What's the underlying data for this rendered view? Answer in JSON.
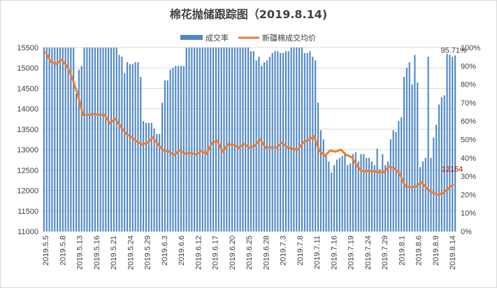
{
  "chart_data": {
    "type": "bar",
    "title": "棉花抛储跟踪图（2019.8.14)",
    "legend": [
      "成交率",
      "新疆棉成交均价"
    ],
    "legend_position": "top",
    "colors": {
      "bar": "#4e87c8",
      "line": "#ed7d31",
      "annotation": "#c00000",
      "grid": "#d9d9d9",
      "axis_text": "#404040"
    },
    "x_tick_labels": [
      "2019.5.5",
      "2019.5.8",
      "2019.5.13",
      "2019.5.16",
      "2019.5.21",
      "2019.5.24",
      "2019.5.29",
      "2019.6.3",
      "2019.6.6",
      "2019.6.12",
      "2019.6.17",
      "2019.6.20",
      "2019.6.25",
      "2019.6.28",
      "2019.7.3",
      "2019.7.8",
      "2019.7.11",
      "2019.7.16",
      "2019.7.19",
      "2019.7.24",
      "2019.7.29",
      "2019.8.1",
      "2019.8.6",
      "2019.8.9",
      "2019.8.14"
    ],
    "left_axis": {
      "min": 11000,
      "max": 15500,
      "ticks": [
        11000,
        11500,
        12000,
        12500,
        13000,
        13500,
        14000,
        14500,
        15000,
        15500
      ]
    },
    "right_axis": {
      "min": 0,
      "max": 100,
      "unit": "%",
      "ticks": [
        0,
        10,
        20,
        30,
        40,
        50,
        60,
        70,
        80,
        90,
        100
      ]
    },
    "grid": true,
    "series": [
      {
        "name": "成交率",
        "type": "bar",
        "axis": "right",
        "values": [
          100,
          100,
          100,
          100,
          100,
          100,
          100,
          100,
          100,
          100,
          100,
          100,
          75,
          88,
          90,
          100,
          100,
          100,
          100,
          100,
          100,
          100,
          100,
          100,
          100,
          100,
          100,
          100,
          96,
          95,
          86,
          92,
          91,
          91,
          92,
          92,
          84,
          60,
          59,
          59,
          59,
          56,
          53,
          53,
          70,
          82,
          82,
          88,
          89,
          90,
          90,
          90,
          90,
          100,
          100,
          100,
          100,
          100,
          100,
          100,
          100,
          100,
          100,
          100,
          100,
          100,
          100,
          100,
          100,
          100,
          100,
          100,
          100,
          100,
          100,
          100,
          100,
          98,
          98,
          93,
          95,
          90,
          92,
          93,
          95,
          97,
          98,
          98,
          97,
          97,
          98,
          98,
          100,
          100,
          100,
          100,
          100,
          97,
          97,
          98,
          95,
          93,
          70,
          55,
          50,
          42,
          38,
          32,
          36,
          39,
          40,
          41,
          42,
          36,
          37,
          42,
          43,
          38,
          42,
          42,
          40,
          40,
          38,
          36,
          45,
          34,
          42,
          36,
          38,
          50,
          55,
          54,
          60,
          62,
          84,
          89,
          92,
          80,
          96,
          81,
          35,
          38,
          40,
          95,
          40,
          51,
          58,
          69,
          73,
          74,
          96.5,
          96,
          95,
          95.71
        ],
        "annotation": "95.71%"
      },
      {
        "name": "新疆棉成交均价",
        "type": "line",
        "axis": "left",
        "values": [
          15400,
          15150,
          15100,
          15200,
          15050,
          14750,
          14350,
          13850,
          13850,
          13870,
          13850,
          13850,
          13650,
          13750,
          13570,
          13390,
          13310,
          13200,
          13130,
          13170,
          13300,
          13120,
          12980,
          12950,
          12870,
          12980,
          12900,
          12920,
          12880,
          12960,
          12900,
          13170,
          13220,
          12950,
          13130,
          13120,
          13050,
          13140,
          13050,
          13100,
          13250,
          13050,
          13060,
          13050,
          13170,
          13060,
          13020,
          13000,
          13180,
          13240,
          13330,
          12970,
          12850,
          12980,
          12950,
          13000,
          12870,
          12820,
          12600,
          12470,
          12480,
          12470,
          12450,
          12450,
          12590,
          12540,
          12400,
          12100,
          12080,
          12100,
          12200,
          12050,
          11950,
          11900,
          11930,
          12050,
          12154
        ],
        "annotation": "12154"
      }
    ]
  }
}
